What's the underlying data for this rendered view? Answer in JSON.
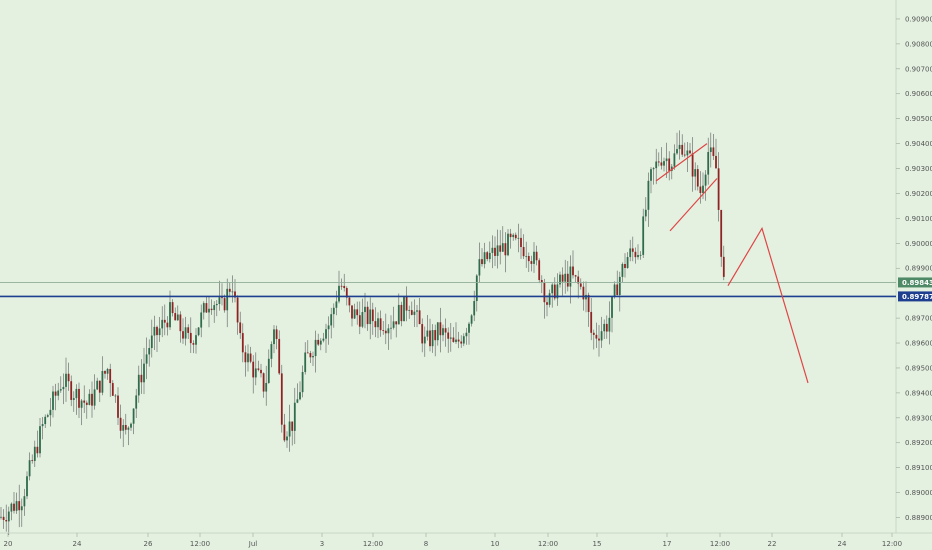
{
  "chart_data": {
    "type": "candlestick",
    "colors": {
      "background": "#e4f1e1",
      "candle_up": "#2f6b4c",
      "candle_down": "#8e2323",
      "wick": "#5a5a5a",
      "support_line": "#1e3f8f",
      "current_line": "#8fae98",
      "drawing": "#e04545",
      "current_tag": "#4e8a65",
      "support_tag": "#1e3f8f"
    },
    "ylim": [
      0.8885,
      0.9096
    ],
    "y_ticks": [
      "0.90900",
      "0.90800",
      "0.90700",
      "0.90600",
      "0.90500",
      "0.90400",
      "0.90300",
      "0.90200",
      "0.90100",
      "0.90000",
      "0.89900",
      "0.89700",
      "0.89600",
      "0.89500",
      "0.89400",
      "0.89300",
      "0.89200",
      "0.89100",
      "0.89000",
      "0.88900"
    ],
    "x_ticks": [
      "20",
      "24",
      "26",
      "12:00",
      "Jul",
      "3",
      "12:00",
      "8",
      "10",
      "12:00",
      "15",
      "17",
      "12:00",
      "22",
      "24",
      "12:00"
    ],
    "current_price": {
      "label": "0.89843",
      "value": 0.89843
    },
    "support_level": {
      "label": "0.89787",
      "value": 0.89787
    },
    "anchors": [
      [
        0,
        0.889
      ],
      [
        22,
        0.8898
      ],
      [
        42,
        0.8926
      ],
      [
        62,
        0.8945
      ],
      [
        88,
        0.8935
      ],
      [
        108,
        0.895
      ],
      [
        125,
        0.8922
      ],
      [
        148,
        0.8958
      ],
      [
        170,
        0.8972
      ],
      [
        190,
        0.896
      ],
      [
        210,
        0.8978
      ],
      [
        222,
        0.8974
      ],
      [
        232,
        0.8985
      ],
      [
        240,
        0.896
      ],
      [
        255,
        0.8948
      ],
      [
        265,
        0.8942
      ],
      [
        275,
        0.897
      ],
      [
        283,
        0.8925
      ],
      [
        293,
        0.8928
      ],
      [
        305,
        0.8952
      ],
      [
        318,
        0.8963
      ],
      [
        330,
        0.8968
      ],
      [
        340,
        0.8985
      ],
      [
        350,
        0.8972
      ],
      [
        368,
        0.897
      ],
      [
        390,
        0.8968
      ],
      [
        410,
        0.8977
      ],
      [
        425,
        0.896
      ],
      [
        440,
        0.8965
      ],
      [
        455,
        0.8958
      ],
      [
        470,
        0.897
      ],
      [
        478,
        0.899
      ],
      [
        490,
        0.8995
      ],
      [
        510,
        0.9
      ],
      [
        528,
        0.8998
      ],
      [
        540,
        0.8988
      ],
      [
        548,
        0.8975
      ],
      [
        555,
        0.8982
      ],
      [
        570,
        0.8987
      ],
      [
        585,
        0.898
      ],
      [
        592,
        0.8962
      ],
      [
        608,
        0.8968
      ],
      [
        618,
        0.8985
      ],
      [
        628,
        0.8995
      ],
      [
        640,
        0.8998
      ],
      [
        650,
        0.9025
      ],
      [
        660,
        0.9035
      ],
      [
        672,
        0.9033
      ],
      [
        682,
        0.904
      ],
      [
        693,
        0.903
      ],
      [
        700,
        0.902
      ],
      [
        708,
        0.9037
      ],
      [
        716,
        0.903
      ],
      [
        720,
        0.9005
      ],
      [
        724,
        0.8983
      ]
    ],
    "annotations": {
      "wedge_line_1": [
        [
          656,
          0.9025
        ],
        [
          707,
          0.904
        ]
      ],
      "wedge_line_2": [
        [
          670,
          0.9005
        ],
        [
          717,
          0.9026
        ]
      ],
      "projection": [
        [
          728,
          0.8983
        ],
        [
          762,
          0.9006
        ],
        [
          808,
          0.8944
        ]
      ]
    }
  }
}
